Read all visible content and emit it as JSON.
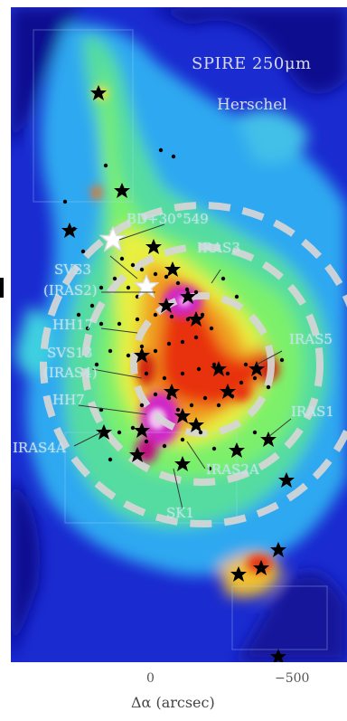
{
  "panel": {
    "instrument": "SPIRE 250μm",
    "telescope": "Herschel"
  },
  "labels": [
    {
      "key": "bd",
      "text": "BD+30°549"
    },
    {
      "key": "iras3",
      "text": "IRAS3"
    },
    {
      "key": "svs3",
      "text": "SVS3"
    },
    {
      "key": "iras2",
      "text": "(IRAS2)"
    },
    {
      "key": "hh17",
      "text": "HH17"
    },
    {
      "key": "svs13",
      "text": "SVS13"
    },
    {
      "key": "iras4",
      "text": "(IRAS4)"
    },
    {
      "key": "hh7",
      "text": "HH7"
    },
    {
      "key": "iras5",
      "text": "IRAS5"
    },
    {
      "key": "iras1",
      "text": "IRAS1"
    },
    {
      "key": "iras4a",
      "text": "IRAS4A"
    },
    {
      "key": "iras2a",
      "text": "IRAS2A"
    },
    {
      "key": "sk1",
      "text": "SK1"
    }
  ],
  "axis": {
    "x_ticks": [
      "0",
      "−500"
    ],
    "x_label": "Δα (arcsec)"
  },
  "colors": {
    "background_blue": "#1428c8",
    "deep_blue": "#0a0a80",
    "cyan": "#30c8f0",
    "green": "#5fe07a",
    "yellow": "#f4e83a",
    "red": "#e02a10",
    "magenta": "#d028c8"
  },
  "markers": {
    "large_stars_black": 26,
    "large_stars_white": 2,
    "small_sources": 70,
    "dashed_rings": 3
  }
}
